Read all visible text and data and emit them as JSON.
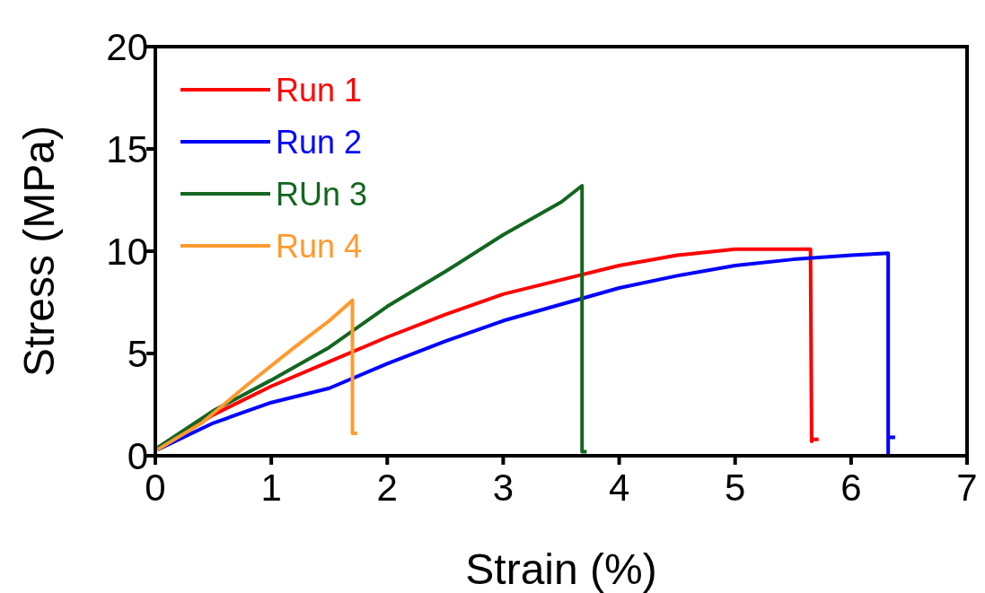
{
  "chart_data": {
    "type": "line",
    "xlabel": "Strain (%)",
    "ylabel": "Stress (MPa)",
    "xlim": [
      0,
      7
    ],
    "ylim": [
      0,
      20
    ],
    "xticks": [
      0,
      1,
      2,
      3,
      4,
      5,
      6,
      7
    ],
    "yticks": [
      0,
      5,
      10,
      15,
      20
    ],
    "grid": false,
    "legend": "top left",
    "line_style": "solid",
    "series": [
      {
        "name": "Run 1",
        "color": "#ff0000",
        "x": [
          0.02,
          0.5,
          1,
          1.5,
          2,
          2.5,
          3,
          3.5,
          4,
          4.5,
          5,
          5.65,
          5.66,
          5.66,
          5.72
        ],
        "values": [
          0.3,
          2.0,
          3.4,
          4.6,
          5.8,
          6.9,
          7.9,
          8.6,
          9.3,
          9.8,
          10.1,
          10.1,
          0.7,
          0.8,
          0.8
        ]
      },
      {
        "name": "Run 2",
        "color": "#0000ff",
        "x": [
          0.02,
          0.5,
          1,
          1.5,
          2,
          2.5,
          3,
          3.5,
          4,
          4.5,
          5,
          5.5,
          6,
          6.32,
          6.32,
          6.32,
          6.38
        ],
        "values": [
          0.3,
          1.6,
          2.6,
          3.3,
          4.5,
          5.6,
          6.6,
          7.4,
          8.2,
          8.8,
          9.3,
          9.6,
          9.8,
          9.9,
          0,
          0.9,
          0.9
        ]
      },
      {
        "name": "RUn 3",
        "color": "#13661f",
        "x": [
          0.02,
          0.5,
          1,
          1.5,
          2,
          2.5,
          3,
          3.5,
          3.68,
          3.68,
          3.72
        ],
        "values": [
          0.4,
          2.2,
          3.7,
          5.3,
          7.3,
          9.0,
          10.8,
          12.4,
          13.2,
          0.2,
          0.2
        ]
      },
      {
        "name": "Run 4",
        "color": "#ff9a2e",
        "x": [
          0.02,
          0.4,
          0.8,
          1.2,
          1.5,
          1.7,
          1.7,
          1.74
        ],
        "values": [
          0.3,
          1.6,
          3.5,
          5.3,
          6.6,
          7.6,
          1.1,
          1.1
        ]
      }
    ]
  }
}
